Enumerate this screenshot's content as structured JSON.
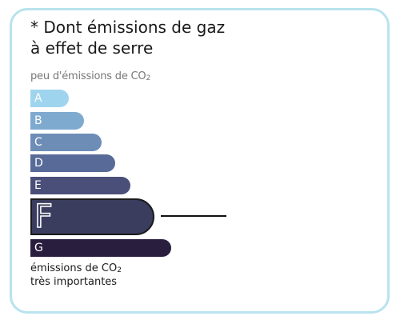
{
  "title": {
    "line1": "* Dont émissions de gaz",
    "line2": "à effet de serre"
  },
  "scale_top_label": {
    "text": "peu d'émissions de CO",
    "subscript": "2"
  },
  "scale_bottom_label": {
    "line1_text": "émissions de CO",
    "line1_subscript": "2",
    "line2_text": "très importantes"
  },
  "classes": [
    {
      "letter": "A",
      "color": "#9fd4ee"
    },
    {
      "letter": "B",
      "color": "#7faad0"
    },
    {
      "letter": "C",
      "color": "#6d8db7"
    },
    {
      "letter": "D",
      "color": "#586a97"
    },
    {
      "letter": "E",
      "color": "#4a4f7a"
    },
    {
      "letter": "F",
      "color": "#3a3d5e",
      "active": true
    },
    {
      "letter": "G",
      "color": "#2a1e3f"
    }
  ],
  "active_class": "F",
  "card_border_color": "#b9e3ee"
}
